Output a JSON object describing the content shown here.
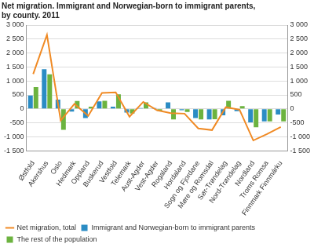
{
  "chart_data": {
    "type": "bar",
    "title": [
      "Net migration. Immigrant and Norwegian-born to immigrant parents,",
      "by county. 2011"
    ],
    "categories": [
      "Østfold",
      "Akershus",
      "Oslo",
      "Hedmark",
      "Oppland",
      "Buskerud",
      "Vestfold",
      "Telemark",
      "Aust-Agder",
      "Vest-Agder",
      "Rogaland",
      "Hordaland",
      "Sogn og Fjordane",
      "Møre og Romsdal",
      "Sør-Trøndelag",
      "Nord-Trøndelag",
      "Nordland",
      "Troms Romsa",
      "Finnmark Finnmárku"
    ],
    "series": [
      {
        "name": "Immigrant and Norwegian-born to immigrant parents",
        "color": "#2b8cc4",
        "type": "bar",
        "values": [
          480,
          1420,
          330,
          -100,
          -330,
          270,
          80,
          -130,
          30,
          30,
          230,
          -50,
          -330,
          -380,
          -230,
          -80,
          -480,
          -450,
          -200
        ]
      },
      {
        "name": "The rest of the population",
        "color": "#6cb33f",
        "type": "bar",
        "values": [
          780,
          1240,
          -750,
          280,
          80,
          290,
          520,
          -170,
          230,
          -80,
          -380,
          -110,
          -380,
          -370,
          290,
          100,
          -660,
          -450,
          -450
        ]
      },
      {
        "name": "Net migration, total",
        "color": "#f08a24",
        "type": "line",
        "axis": "y2",
        "values": [
          1250,
          2650,
          -420,
          180,
          -250,
          570,
          590,
          -280,
          250,
          -50,
          -150,
          -170,
          -700,
          -760,
          60,
          -30,
          -1130,
          -900,
          -650
        ]
      }
    ],
    "ylim": [
      -1500,
      3000
    ],
    "yticks": [
      {
        "value": -1500,
        "label": "-1 500"
      },
      {
        "value": -1000,
        "label": "-1 000"
      },
      -500,
      0,
      500,
      {
        "value": 1000,
        "label": "1 000"
      },
      {
        "value": 1500,
        "label": "1 500"
      },
      {
        "value": 2000,
        "label": "2 000"
      },
      {
        "value": 2500,
        "label": "2 500"
      },
      {
        "value": 3000,
        "label": "3 000"
      }
    ],
    "y2lim": [
      -1500,
      3000
    ],
    "y2ticks": [
      {
        "value": -1500,
        "label": "-1 500"
      },
      {
        "value": -1000,
        "label": "-1 000"
      },
      -500,
      0,
      500,
      {
        "value": 1000,
        "label": "1 000"
      },
      {
        "value": 1500,
        "label": "1 500"
      },
      {
        "value": 2000,
        "label": "2 000"
      },
      {
        "value": 2500,
        "label": "2 500"
      },
      {
        "value": 3000,
        "label": "3 000"
      }
    ],
    "grid": true,
    "legend": "bottom"
  }
}
